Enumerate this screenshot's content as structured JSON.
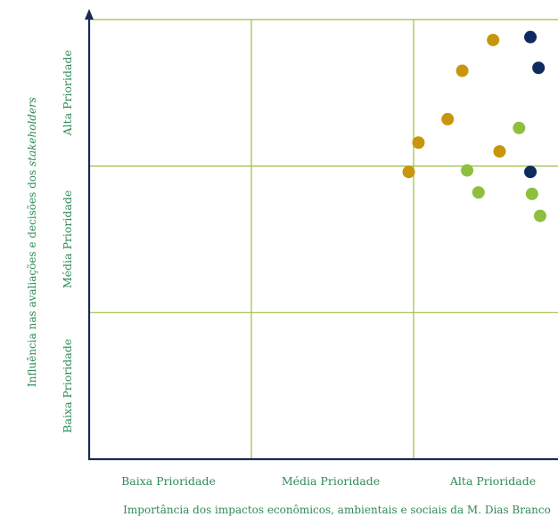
{
  "chart_data": {
    "type": "scatter",
    "x_categories": [
      "Baixa Prioridade",
      "Média Prioridade",
      "Alta Prioridade"
    ],
    "y_categories": [
      "Baixa Prioridade",
      "Média Prioridade",
      "Alta Prioridade"
    ],
    "xlabel": "Importância dos impactos econômicos, ambientais e sociais da M. Dias Branco",
    "ylabel_main": "Influência nas avaliações e decisões dos ",
    "ylabel_italic": "stakeholders",
    "xlim": [
      0,
      3
    ],
    "ylim": [
      0,
      3
    ],
    "grid": true,
    "colors": {
      "axis": "#1a2a55",
      "grid": "#9bbf45",
      "label": "#2e8b57",
      "navy": "#0f2a5e",
      "gold": "#c8960c",
      "green": "#8fbf3f"
    },
    "series": [
      {
        "color_key": "navy",
        "points": [
          [
            2.72,
            2.88
          ],
          [
            2.77,
            2.67
          ],
          [
            2.72,
            1.96
          ]
        ]
      },
      {
        "color_key": "gold",
        "points": [
          [
            2.49,
            2.86
          ],
          [
            2.3,
            2.65
          ],
          [
            2.21,
            2.32
          ],
          [
            2.03,
            2.16
          ],
          [
            2.53,
            2.1
          ],
          [
            1.97,
            1.96
          ]
        ]
      },
      {
        "color_key": "green",
        "points": [
          [
            2.65,
            2.26
          ],
          [
            2.33,
            1.97
          ],
          [
            2.4,
            1.82
          ],
          [
            2.73,
            1.81
          ],
          [
            2.78,
            1.66
          ]
        ]
      }
    ]
  }
}
